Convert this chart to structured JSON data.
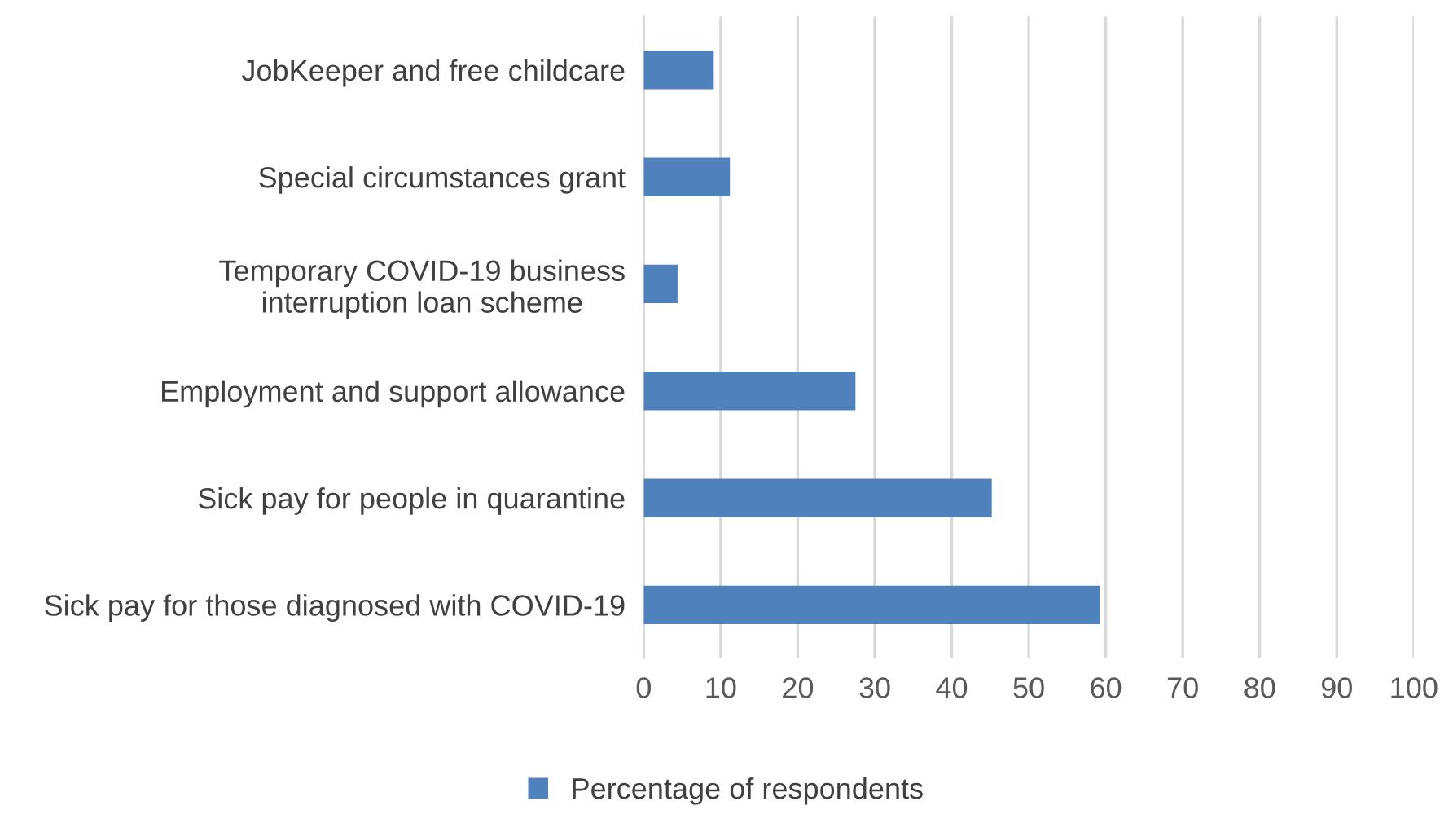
{
  "chart_data": {
    "type": "bar",
    "orientation": "horizontal",
    "categories": [
      "JobKeeper and free childcare",
      "Special circumstances grant",
      "Temporary COVID-19 business interruption loan scheme",
      "Employment and support allowance",
      "Sick pay for people in quarantine",
      "Sick pay for those diagnosed with COVID-19"
    ],
    "series": [
      {
        "name": "Percentage of respondents",
        "color": "#4f81bd",
        "values": [
          9.1,
          11.2,
          4.4,
          27.5,
          45.2,
          59.2
        ]
      }
    ],
    "xlim": [
      0,
      100
    ],
    "xticks": [
      0,
      10,
      20,
      30,
      40,
      50,
      60,
      70,
      80,
      90,
      100
    ],
    "grid": "x",
    "legend": "bottom"
  }
}
